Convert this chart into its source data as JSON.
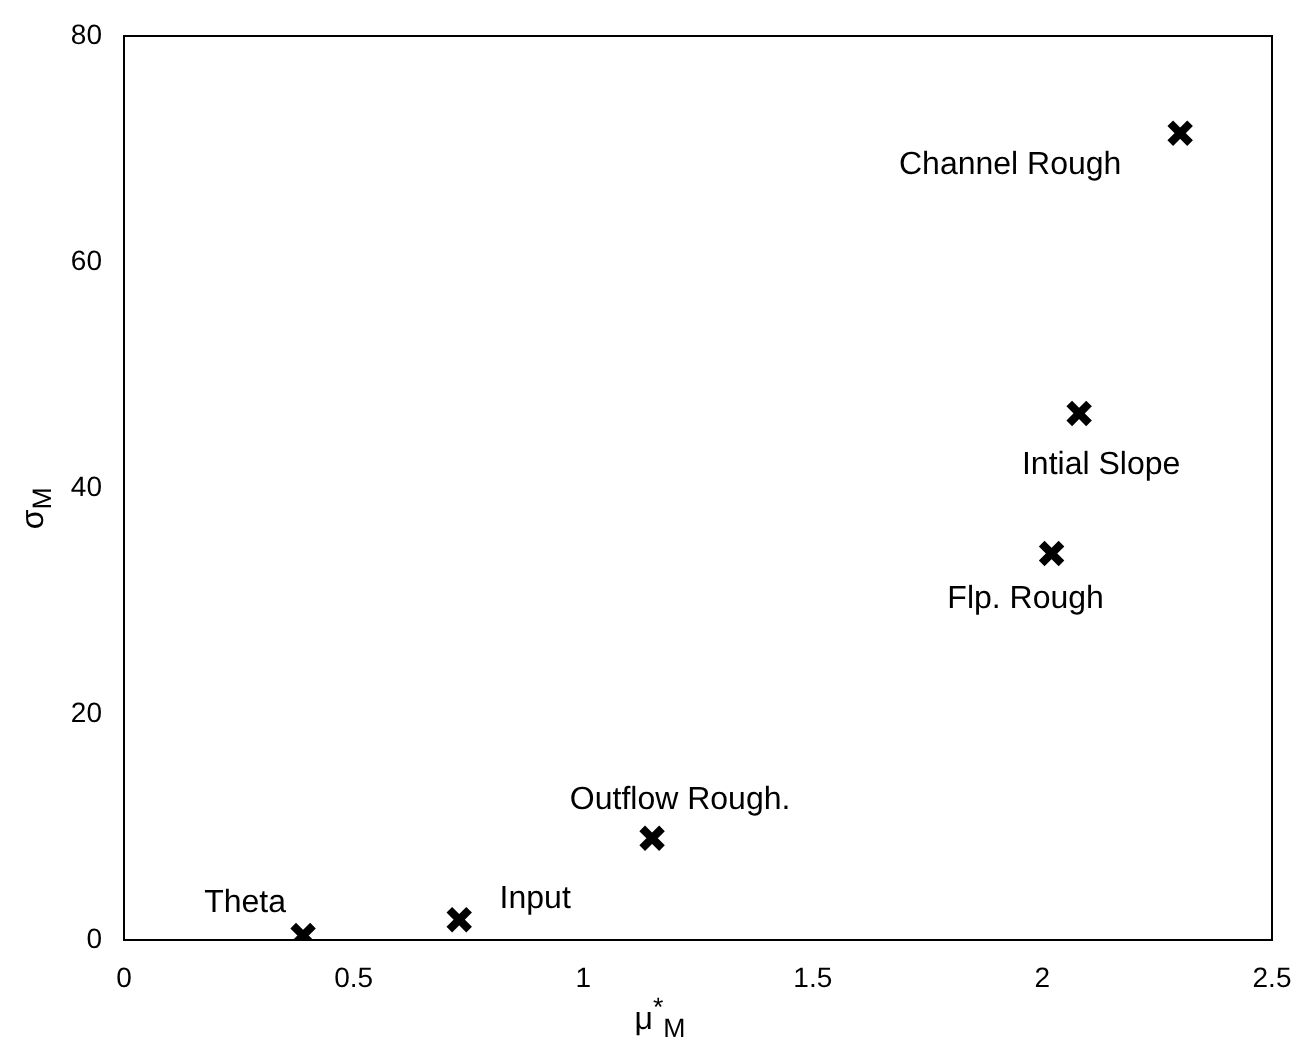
{
  "chart_data": {
    "type": "scatter",
    "xlabel": "μ$^{*}$$_{M}$",
    "ylabel": "σ$_{M}$",
    "series": [
      {
        "color": "#000000",
        "x": [
          0.39,
          0.73,
          1.15,
          2.02,
          2.08,
          2.3
        ],
        "values": [
          0.4,
          1.8,
          9.0,
          34.2,
          46.6,
          71.4
        ]
      }
    ],
    "xlim": [
      0,
      2.5
    ],
    "xticks": [
      0,
      0.5,
      1,
      1.5,
      2,
      2.5
    ],
    "ylim": [
      0,
      80
    ],
    "yticks": [
      0,
      20,
      40,
      60,
      80
    ],
    "grid": false,
    "legend": false,
    "marker": "cross",
    "annotations": [
      {
        "text": "Theta",
        "x": 0.39,
        "y": 0.4
      },
      {
        "text": "Input",
        "x": 0.73,
        "y": 1.8
      },
      {
        "text": "Outflow Rough.",
        "x": 1.15,
        "y": 9.0
      },
      {
        "text": "Flp. Rough",
        "x": 2.02,
        "y": 34.2
      },
      {
        "text": "Intial Slope",
        "x": 2.08,
        "y": 46.6
      },
      {
        "text": "Channel Rough",
        "x": 2.3,
        "y": 71.4
      }
    ]
  }
}
